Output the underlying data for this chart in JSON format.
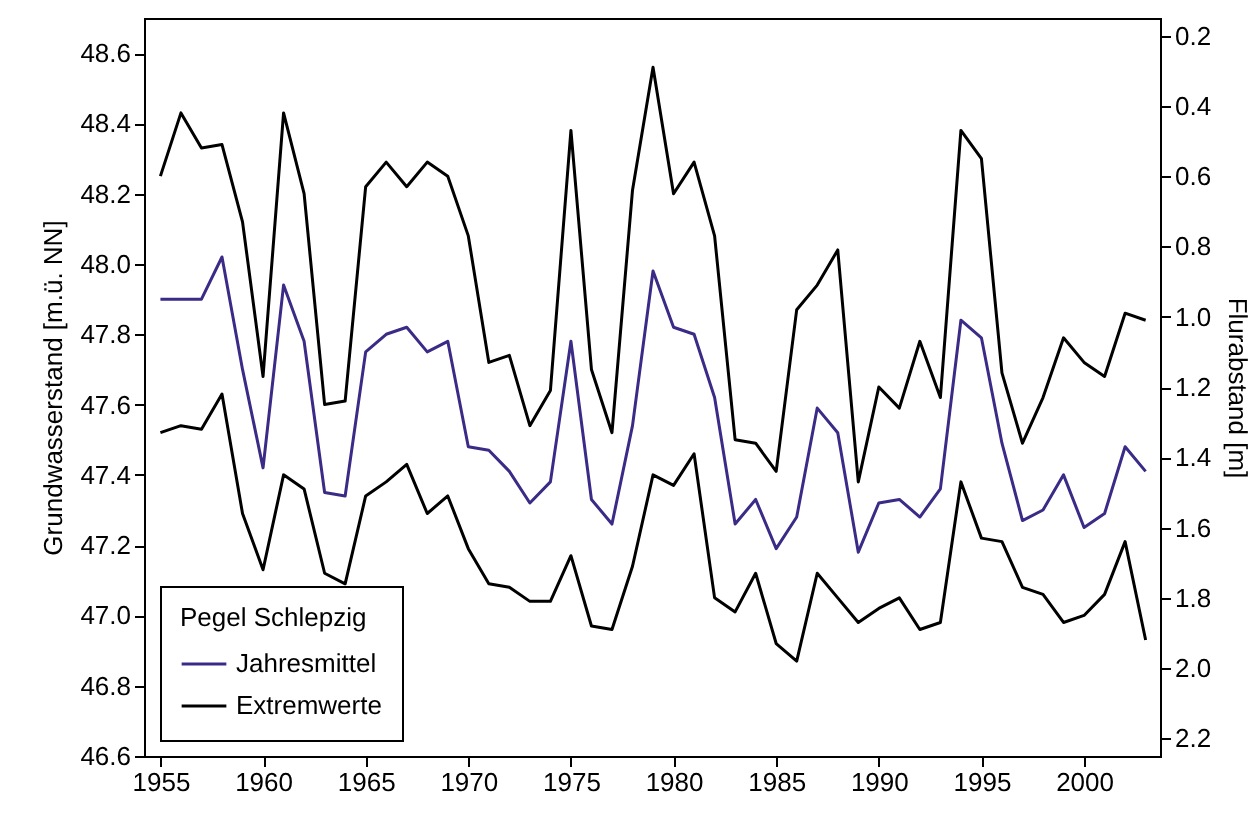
{
  "chart_data": {
    "type": "line",
    "ylabel": "Grundwasserstand [m.ü. NN]",
    "y2label": "Flurabstand [m]",
    "legend_title": "Pegel Schlepzig",
    "legend": "bottom left",
    "grid": false,
    "line_style": "solid",
    "marker": "none",
    "x": [
      1955,
      1956,
      1957,
      1958,
      1959,
      1960,
      1961,
      1962,
      1963,
      1964,
      1965,
      1966,
      1967,
      1968,
      1969,
      1970,
      1971,
      1972,
      1973,
      1974,
      1975,
      1976,
      1977,
      1978,
      1979,
      1980,
      1981,
      1982,
      1983,
      1984,
      1985,
      1986,
      1987,
      1988,
      1989,
      1990,
      1991,
      1992,
      1993,
      1994,
      1995,
      1996,
      1997,
      1998,
      1999,
      2000,
      2001,
      2002,
      2003
    ],
    "xlim": [
      1954.2,
      2003.7
    ],
    "xticks": [
      1955,
      1960,
      1965,
      1970,
      1975,
      1980,
      1985,
      1990,
      1995,
      2000
    ],
    "ylim": [
      46.6,
      48.7
    ],
    "yticks": [
      {
        "value": 46.6,
        "label": "46.6"
      },
      {
        "value": 46.8,
        "label": "46.8"
      },
      {
        "value": 47.0,
        "label": "47.0"
      },
      {
        "value": 47.2,
        "label": "47.2"
      },
      {
        "value": 47.4,
        "label": "47.4"
      },
      {
        "value": 47.6,
        "label": "47.6"
      },
      {
        "value": 47.8,
        "label": "47.8"
      },
      {
        "value": 48.0,
        "label": "48.0"
      },
      {
        "value": 48.2,
        "label": "48.2"
      },
      {
        "value": 48.4,
        "label": "48.4"
      },
      {
        "value": 48.6,
        "label": "48.6"
      }
    ],
    "y2lim": [
      2.25,
      0.15
    ],
    "y2ticks": [
      0.2,
      0.4,
      0.6,
      0.8,
      {
        "value": 1.0,
        "label": "1.0"
      },
      1.2,
      1.4,
      1.6,
      1.8,
      {
        "value": 2.0,
        "label": "2.0"
      },
      2.2
    ],
    "series": [
      {
        "name": "Jahresmittel",
        "color": "#3b2a86",
        "values": [
          47.9,
          47.9,
          47.9,
          48.02,
          47.7,
          47.42,
          47.94,
          47.78,
          47.35,
          47.34,
          47.75,
          47.8,
          47.82,
          47.75,
          47.78,
          47.48,
          47.47,
          47.41,
          47.32,
          47.38,
          47.78,
          47.33,
          47.26,
          47.54,
          47.98,
          47.82,
          47.8,
          47.62,
          47.26,
          47.33,
          47.19,
          47.28,
          47.59,
          47.52,
          47.18,
          47.32,
          47.33,
          47.28,
          47.36,
          47.84,
          47.79,
          47.49,
          47.27,
          47.3,
          47.4,
          47.25,
          47.29,
          47.48,
          47.41
        ]
      },
      {
        "name": "Extremwerte",
        "color": "#000000",
        "values": [
          48.25,
          48.43,
          48.33,
          48.34,
          48.12,
          47.68,
          48.43,
          48.2,
          47.6,
          47.61,
          48.22,
          48.29,
          48.22,
          48.29,
          48.25,
          48.08,
          47.72,
          47.74,
          47.54,
          47.64,
          48.38,
          47.7,
          47.52,
          48.21,
          48.56,
          48.2,
          48.29,
          48.08,
          47.5,
          47.49,
          47.41,
          47.87,
          47.94,
          48.04,
          47.38,
          47.65,
          47.59,
          47.78,
          47.62,
          48.38,
          48.3,
          47.69,
          47.49,
          47.62,
          47.79,
          47.72,
          47.68,
          47.86,
          47.84
        ]
      },
      {
        "color": "#000000",
        "values": [
          47.52,
          47.54,
          47.53,
          47.63,
          47.29,
          47.13,
          47.4,
          47.36,
          47.12,
          47.09,
          47.34,
          47.38,
          47.43,
          47.29,
          47.34,
          47.19,
          47.09,
          47.08,
          47.04,
          47.04,
          47.17,
          46.97,
          46.96,
          47.14,
          47.4,
          47.37,
          47.46,
          47.05,
          47.01,
          47.12,
          46.92,
          46.87,
          47.12,
          47.05,
          46.98,
          47.02,
          47.05,
          46.96,
          46.98,
          47.38,
          47.22,
          47.21,
          47.08,
          47.06,
          46.98,
          47.0,
          47.06,
          47.21,
          46.93
        ]
      }
    ]
  }
}
